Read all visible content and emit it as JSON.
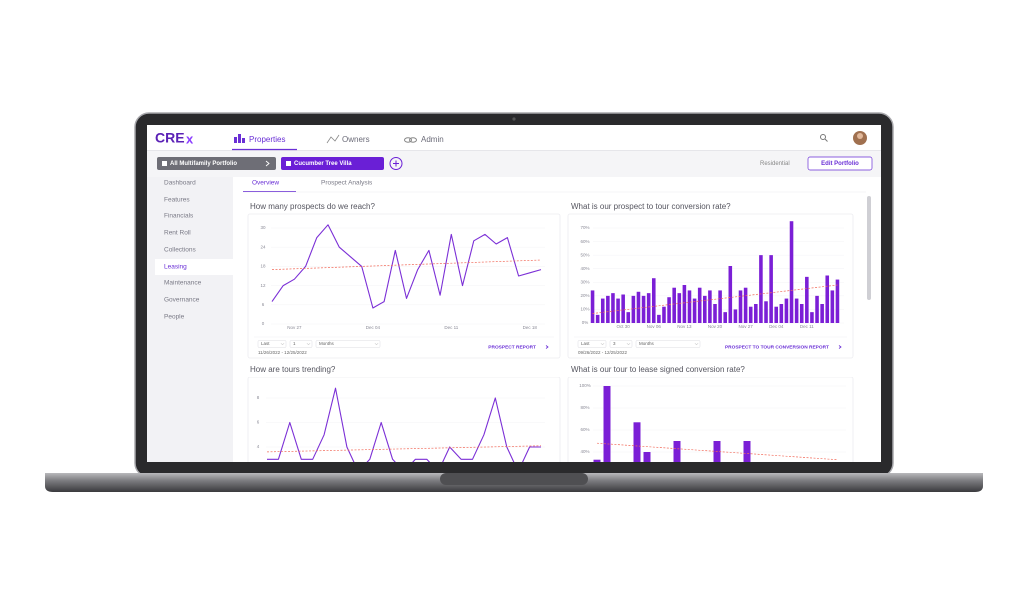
{
  "nav": {
    "logo": "CRE",
    "logo_mark": "x",
    "items": [
      "Properties",
      "Owners",
      "Admin"
    ]
  },
  "toolbar": {
    "portfolio": "All Multifamily Portfolio",
    "property": "Cucumber Tree Villa",
    "type": "Residential",
    "edit": "Edit Portfolio"
  },
  "sidebar": [
    "Dashboard",
    "Features",
    "Financials",
    "Rent Roll",
    "Collections",
    "Leasing",
    "Maintenance",
    "Governance",
    "People"
  ],
  "tabs": [
    "Overview",
    "Prospect Analysis"
  ],
  "charts": [
    {
      "type": "line",
      "title": "How many prospects do we reach?",
      "color": "#7b2fd6",
      "grid": true,
      "categories": [
        null,
        null,
        "Nov 27",
        null,
        null,
        null,
        null,
        null,
        null,
        "Dec 04",
        null,
        null,
        null,
        null,
        null,
        null,
        "Dec 11",
        null,
        null,
        null,
        null,
        null,
        null,
        "Dec 18",
        null
      ],
      "values": [
        7,
        12,
        14,
        18,
        27,
        31,
        24,
        21,
        18,
        5,
        7,
        23,
        8,
        17,
        23,
        9,
        28,
        12,
        26,
        28,
        25,
        27,
        15,
        16,
        17
      ],
      "trend": [
        17,
        20
      ],
      "trend_color": "#f26b5b",
      "ylim": [
        0,
        30
      ],
      "yticks": [
        0,
        6,
        12,
        18,
        24,
        30
      ],
      "controls": {
        "period": "Last",
        "count": "1",
        "unit": "Months",
        "range": "11/26/2022 - 12/25/2022",
        "report": "PROSPECT REPORT"
      }
    },
    {
      "type": "bar",
      "title": "What is our prospect to tour conversion rate?",
      "color": "#7b1fd6",
      "grid": true,
      "categories": [
        null,
        null,
        null,
        null,
        null,
        null,
        "Oct 30",
        null,
        null,
        null,
        null,
        null,
        "Nov 06",
        null,
        null,
        null,
        null,
        null,
        "Nov 13",
        null,
        null,
        null,
        null,
        null,
        "Nov 20",
        null,
        null,
        null,
        null,
        null,
        "Nov 27",
        null,
        null,
        null,
        null,
        null,
        "Dec 04",
        null,
        null,
        null,
        null,
        null,
        "Dec 11",
        null,
        null,
        null,
        null,
        null,
        null
      ],
      "values": [
        24,
        6,
        18,
        20,
        22,
        18,
        21,
        8,
        20,
        23,
        20,
        22,
        33,
        6,
        12,
        19,
        26,
        22,
        28,
        24,
        18,
        26,
        20,
        24,
        14,
        24,
        8,
        42,
        10,
        24,
        26,
        12,
        14,
        50,
        16,
        50,
        12,
        14,
        18,
        75,
        18,
        14,
        34,
        8,
        20,
        14,
        35,
        24,
        32
      ],
      "trend": [
        7,
        28
      ],
      "trend_color": "#f26b5b",
      "ylim": [
        0,
        70
      ],
      "yticks": [
        {
          "value": 0,
          "label": "0%"
        },
        {
          "value": 10,
          "label": "10%"
        },
        {
          "value": 20,
          "label": "20%"
        },
        {
          "value": 30,
          "label": "30%"
        },
        {
          "value": 40,
          "label": "40%"
        },
        {
          "value": 50,
          "label": "50%"
        },
        {
          "value": 60,
          "label": "60%"
        },
        {
          "value": 70,
          "label": "70%"
        }
      ],
      "controls": {
        "period": "Last",
        "count": "3",
        "unit": "Months",
        "range": "09/26/2022 - 12/25/2022",
        "report": "PROSPECT TO TOUR CONVERSION REPORT"
      }
    },
    {
      "type": "line",
      "title": "How are tours trending?",
      "color": "#7b2fd6",
      "grid": true,
      "values": [
        3,
        3,
        6,
        3,
        3,
        5,
        8.8,
        4,
        2,
        3,
        6,
        3,
        2,
        3,
        3,
        2,
        4,
        3,
        3,
        5,
        8,
        4,
        2,
        4,
        4
      ],
      "trend": [
        3.6,
        4.1
      ],
      "trend_color": "#f26b5b",
      "ylim": [
        0,
        8
      ],
      "yticks": [
        0,
        2,
        4,
        6,
        8
      ]
    },
    {
      "type": "bar",
      "title": "What is our tour to lease signed conversion rate?",
      "color": "#7b1fd6",
      "grid": true,
      "values": [
        33,
        100,
        null,
        null,
        67,
        40,
        null,
        null,
        50,
        null,
        null,
        null,
        50,
        null,
        null,
        50,
        null,
        null,
        null,
        null,
        null,
        null,
        null,
        null,
        null
      ],
      "trend": [
        48,
        33
      ],
      "trend_color": "#f26b5b",
      "ylim": [
        0,
        100
      ],
      "yticks": [
        {
          "value": 0,
          "label": "0%"
        },
        {
          "value": 20,
          "label": "20%"
        },
        {
          "value": 40,
          "label": "40%"
        },
        {
          "value": 60,
          "label": "60%"
        },
        {
          "value": 80,
          "label": "80%"
        },
        {
          "value": 100,
          "label": "100%"
        }
      ]
    }
  ]
}
